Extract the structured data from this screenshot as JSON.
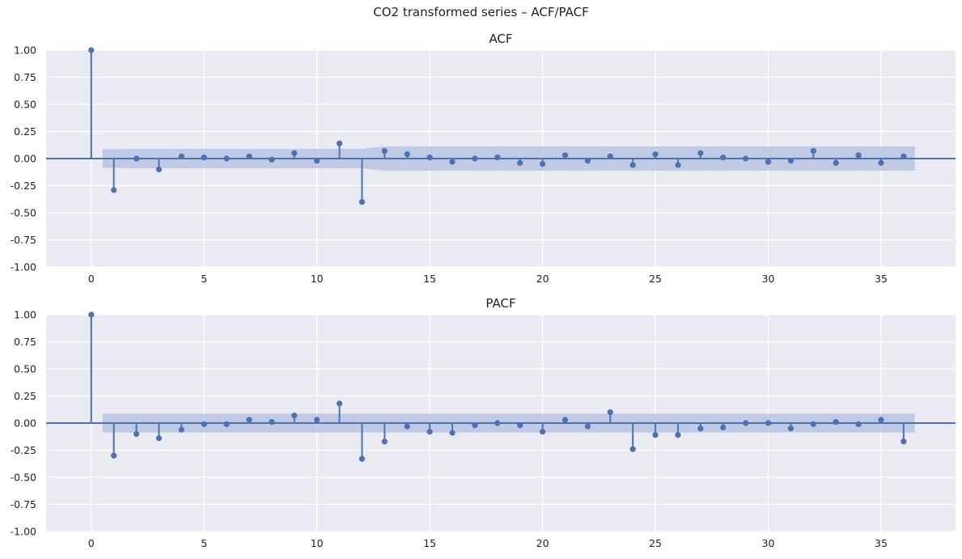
{
  "figure": {
    "title": "CO2 transformed series – ACF/PACF"
  },
  "colors": {
    "stem": "#4c72b0",
    "band": "#b3bfdf",
    "background": "#eaeaf2",
    "grid": "#ffffff"
  },
  "chart_data": [
    {
      "type": "stem",
      "title": "ACF",
      "xlabel": "",
      "ylabel": "",
      "xlim": [
        -2,
        38.3
      ],
      "ylim": [
        -1.0,
        1.0
      ],
      "xticks": [
        0,
        5,
        10,
        15,
        20,
        25,
        30,
        35
      ],
      "yticks": [
        -1.0,
        -0.75,
        -0.5,
        -0.25,
        0.0,
        0.25,
        0.5,
        0.75,
        1.0
      ],
      "ytick_labels": [
        "-1.00",
        "-0.75",
        "-0.50",
        "-0.25",
        "0.00",
        "0.25",
        "0.50",
        "0.75",
        "1.00"
      ],
      "grid": true,
      "lags": [
        0,
        1,
        2,
        3,
        4,
        5,
        6,
        7,
        8,
        9,
        10,
        11,
        12,
        13,
        14,
        15,
        16,
        17,
        18,
        19,
        20,
        21,
        22,
        23,
        24,
        25,
        26,
        27,
        28,
        29,
        30,
        31,
        32,
        33,
        34,
        35,
        36
      ],
      "values": [
        1.0,
        -0.29,
        0.0,
        -0.1,
        0.02,
        0.01,
        0.0,
        0.02,
        -0.01,
        0.05,
        -0.02,
        0.14,
        -0.4,
        0.07,
        0.04,
        0.01,
        -0.03,
        0.0,
        0.01,
        -0.04,
        -0.05,
        0.03,
        -0.02,
        0.02,
        -0.06,
        0.04,
        -0.06,
        0.05,
        0.01,
        0.0,
        -0.03,
        -0.02,
        0.07,
        -0.04,
        0.03,
        -0.04,
        0.02
      ],
      "confint_x": [
        0.5,
        1,
        2,
        3,
        11,
        12,
        13,
        36.5
      ],
      "confint_upper": [
        0.087,
        0.087,
        0.09,
        0.09,
        0.09,
        0.09,
        0.112,
        0.112
      ],
      "confint_lower": [
        -0.087,
        -0.087,
        -0.09,
        -0.09,
        -0.09,
        -0.09,
        -0.112,
        -0.112
      ]
    },
    {
      "type": "stem",
      "title": "PACF",
      "xlabel": "",
      "ylabel": "",
      "xlim": [
        -2,
        38.3
      ],
      "ylim": [
        -1.0,
        1.0
      ],
      "xticks": [
        0,
        5,
        10,
        15,
        20,
        25,
        30,
        35
      ],
      "yticks": [
        -1.0,
        -0.75,
        -0.5,
        -0.25,
        0.0,
        0.25,
        0.5,
        0.75,
        1.0
      ],
      "ytick_labels": [
        "-1.00",
        "-0.75",
        "-0.50",
        "-0.25",
        "0.00",
        "0.25",
        "0.50",
        "0.75",
        "1.00"
      ],
      "grid": true,
      "lags": [
        0,
        1,
        2,
        3,
        4,
        5,
        6,
        7,
        8,
        9,
        10,
        11,
        12,
        13,
        14,
        15,
        16,
        17,
        18,
        19,
        20,
        21,
        22,
        23,
        24,
        25,
        26,
        27,
        28,
        29,
        30,
        31,
        32,
        33,
        34,
        35,
        36
      ],
      "values": [
        1.0,
        -0.3,
        -0.1,
        -0.14,
        -0.06,
        -0.01,
        -0.01,
        0.03,
        0.01,
        0.07,
        0.03,
        0.18,
        -0.33,
        -0.17,
        -0.03,
        -0.08,
        -0.09,
        -0.02,
        0.0,
        -0.02,
        -0.08,
        0.03,
        -0.03,
        0.1,
        -0.24,
        -0.11,
        -0.11,
        -0.05,
        -0.04,
        0.0,
        0.0,
        -0.05,
        -0.01,
        0.01,
        -0.01,
        0.03,
        -0.17
      ],
      "confint_x": [
        0.5,
        36.5
      ],
      "confint_upper": [
        0.087,
        0.087
      ],
      "confint_lower": [
        -0.087,
        -0.087
      ]
    }
  ]
}
